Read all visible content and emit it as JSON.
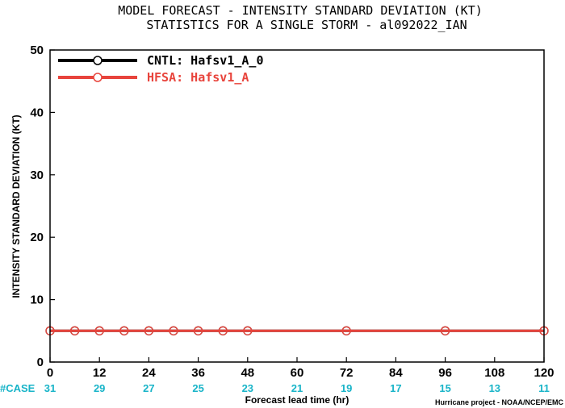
{
  "chart_data": {
    "type": "line",
    "title": "MODEL FORECAST - INTENSITY STANDARD DEVIATION (KT)",
    "subtitle": "STATISTICS FOR A SINGLE STORM - al092022_IAN",
    "xlabel": "Forecast lead time (hr)",
    "ylabel": "INTENSITY STANDARD DEVIATION (KT)",
    "xlim": [
      0,
      120
    ],
    "ylim": [
      0,
      50
    ],
    "x_ticks": [
      0,
      12,
      24,
      36,
      48,
      60,
      72,
      84,
      96,
      108,
      120
    ],
    "y_ticks": [
      0,
      10,
      20,
      30,
      40,
      50
    ],
    "legend_placement": "top-left",
    "series": [
      {
        "name": "CNTL: Hafsv1_A_0",
        "color": "#000000",
        "x": [
          0,
          6,
          12,
          18,
          24,
          30,
          36,
          42,
          48,
          72,
          96,
          120
        ],
        "y": [
          5,
          5,
          5,
          5,
          5,
          5,
          5,
          5,
          5,
          5,
          5,
          5
        ]
      },
      {
        "name": "HFSA: Hafsv1_A",
        "color": "#e8443c",
        "x": [
          0,
          6,
          12,
          18,
          24,
          30,
          36,
          42,
          48,
          72,
          96,
          120
        ],
        "y": [
          5,
          5,
          5,
          5,
          5,
          5,
          5,
          5,
          5,
          5,
          5,
          5
        ]
      }
    ],
    "case_label": "#CASE",
    "cases": {
      "x": [
        0,
        12,
        24,
        36,
        48,
        60,
        72,
        84,
        96,
        108,
        120
      ],
      "values": [
        31,
        29,
        27,
        25,
        23,
        21,
        19,
        17,
        15,
        13,
        11
      ]
    },
    "credit": "Hurricane project - NOAA/NCEP/EMC"
  }
}
